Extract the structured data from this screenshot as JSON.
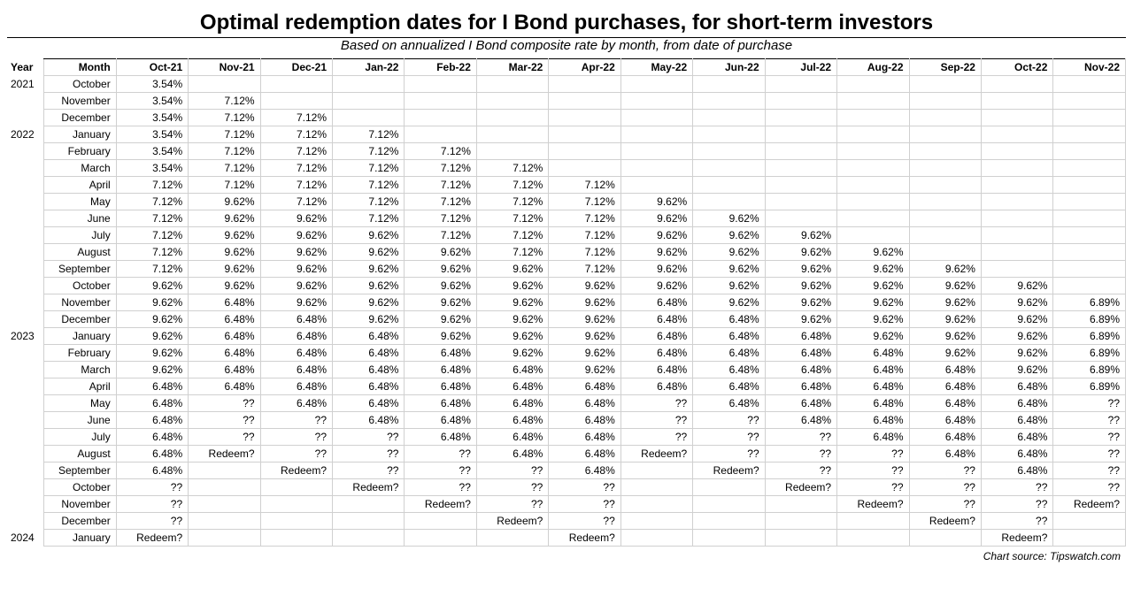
{
  "title": "Optimal redemption dates for I Bond purchases, for short-term investors",
  "subtitle": "Based on annualized I Bond composite rate by month, from date of purchase",
  "footer": "Chart source: Tipswatch.com",
  "headers": {
    "year": "Year",
    "month": "Month",
    "cols": [
      "Oct-21",
      "Nov-21",
      "Dec-21",
      "Jan-22",
      "Feb-22",
      "Mar-22",
      "Apr-22",
      "May-22",
      "Jun-22",
      "Jul-22",
      "Aug-22",
      "Sep-22",
      "Oct-22",
      "Nov-22"
    ]
  },
  "rows": [
    {
      "year": "2021",
      "month": "October",
      "cells": [
        "3.54%",
        "",
        "",
        "",
        "",
        "",
        "",
        "",
        "",
        "",
        "",
        "",
        "",
        ""
      ]
    },
    {
      "year": "",
      "month": "November",
      "cells": [
        "3.54%",
        "7.12%",
        "",
        "",
        "",
        "",
        "",
        "",
        "",
        "",
        "",
        "",
        "",
        ""
      ]
    },
    {
      "year": "",
      "month": "December",
      "cells": [
        "3.54%",
        "7.12%",
        "7.12%",
        "",
        "",
        "",
        "",
        "",
        "",
        "",
        "",
        "",
        "",
        ""
      ]
    },
    {
      "year": "2022",
      "month": "January",
      "cells": [
        "3.54%",
        "7.12%",
        "7.12%",
        "7.12%",
        "",
        "",
        "",
        "",
        "",
        "",
        "",
        "",
        "",
        ""
      ]
    },
    {
      "year": "",
      "month": "February",
      "cells": [
        "3.54%",
        "7.12%",
        "7.12%",
        "7.12%",
        "7.12%",
        "",
        "",
        "",
        "",
        "",
        "",
        "",
        "",
        ""
      ]
    },
    {
      "year": "",
      "month": "March",
      "cells": [
        "3.54%",
        "7.12%",
        "7.12%",
        "7.12%",
        "7.12%",
        "7.12%",
        "",
        "",
        "",
        "",
        "",
        "",
        "",
        ""
      ]
    },
    {
      "year": "",
      "month": "April",
      "cells": [
        "7.12%",
        "7.12%",
        "7.12%",
        "7.12%",
        "7.12%",
        "7.12%",
        "7.12%",
        "",
        "",
        "",
        "",
        "",
        "",
        ""
      ]
    },
    {
      "year": "",
      "month": "May",
      "cells": [
        "7.12%",
        "9.62%",
        "7.12%",
        "7.12%",
        "7.12%",
        "7.12%",
        "7.12%",
        "9.62%",
        "",
        "",
        "",
        "",
        "",
        ""
      ]
    },
    {
      "year": "",
      "month": "June",
      "cells": [
        "7.12%",
        "9.62%",
        "9.62%",
        "7.12%",
        "7.12%",
        "7.12%",
        "7.12%",
        "9.62%",
        "9.62%",
        "",
        "",
        "",
        "",
        ""
      ]
    },
    {
      "year": "",
      "month": "July",
      "cells": [
        "7.12%",
        "9.62%",
        "9.62%",
        "9.62%",
        "7.12%",
        "7.12%",
        "7.12%",
        "9.62%",
        "9.62%",
        "9.62%",
        "",
        "",
        "",
        ""
      ]
    },
    {
      "year": "",
      "month": "August",
      "cells": [
        "7.12%",
        "9.62%",
        "9.62%",
        "9.62%",
        "9.62%",
        "7.12%",
        "7.12%",
        "9.62%",
        "9.62%",
        "9.62%",
        "9.62%",
        "",
        "",
        ""
      ]
    },
    {
      "year": "",
      "month": "September",
      "cells": [
        "7.12%",
        "9.62%",
        "9.62%",
        "9.62%",
        "9.62%",
        "9.62%",
        "7.12%",
        "9.62%",
        "9.62%",
        "9.62%",
        "9.62%",
        "9.62%",
        "",
        ""
      ]
    },
    {
      "year": "",
      "month": "October",
      "cells": [
        "9.62%",
        "9.62%",
        "9.62%",
        "9.62%",
        "9.62%",
        "9.62%",
        "9.62%",
        "9.62%",
        "9.62%",
        "9.62%",
        "9.62%",
        "9.62%",
        "9.62%",
        ""
      ]
    },
    {
      "year": "",
      "month": "November",
      "cells": [
        "9.62%",
        "6.48%",
        "9.62%",
        "9.62%",
        "9.62%",
        "9.62%",
        "9.62%",
        "6.48%",
        "9.62%",
        "9.62%",
        "9.62%",
        "9.62%",
        "9.62%",
        "6.89%"
      ]
    },
    {
      "year": "",
      "month": "December",
      "cells": [
        "9.62%",
        "6.48%",
        "6.48%",
        "9.62%",
        "9.62%",
        "9.62%",
        "9.62%",
        "6.48%",
        "6.48%",
        "9.62%",
        "9.62%",
        "9.62%",
        "9.62%",
        "6.89%"
      ]
    },
    {
      "year": "2023",
      "month": "January",
      "cells": [
        "9.62%",
        "6.48%",
        "6.48%",
        "6.48%",
        "9.62%",
        "9.62%",
        "9.62%",
        "6.48%",
        "6.48%",
        "6.48%",
        "9.62%",
        "9.62%",
        "9.62%",
        "6.89%"
      ]
    },
    {
      "year": "",
      "month": "February",
      "cells": [
        "9.62%",
        "6.48%",
        "6.48%",
        "6.48%",
        "6.48%",
        "9.62%",
        "9.62%",
        "6.48%",
        "6.48%",
        "6.48%",
        "6.48%",
        "9.62%",
        "9.62%",
        "6.89%"
      ]
    },
    {
      "year": "",
      "month": "March",
      "cells": [
        "9.62%",
        "6.48%",
        "6.48%",
        "6.48%",
        "6.48%",
        "6.48%",
        "9.62%",
        "6.48%",
        "6.48%",
        "6.48%",
        "6.48%",
        "6.48%",
        "9.62%",
        "6.89%"
      ]
    },
    {
      "year": "",
      "month": "April",
      "cells": [
        "6.48%",
        "6.48%",
        "6.48%",
        "6.48%",
        "6.48%",
        "6.48%",
        "6.48%",
        "6.48%",
        "6.48%",
        "6.48%",
        "6.48%",
        "6.48%",
        "6.48%",
        "6.89%"
      ]
    },
    {
      "year": "",
      "month": "May",
      "cells": [
        "6.48%",
        "??",
        "6.48%",
        "6.48%",
        "6.48%",
        "6.48%",
        "6.48%",
        "??",
        "6.48%",
        "6.48%",
        "6.48%",
        "6.48%",
        "6.48%",
        "??"
      ]
    },
    {
      "year": "",
      "month": "June",
      "cells": [
        "6.48%",
        "??",
        "??",
        "6.48%",
        "6.48%",
        "6.48%",
        "6.48%",
        "??",
        "??",
        "6.48%",
        "6.48%",
        "6.48%",
        "6.48%",
        "??"
      ]
    },
    {
      "year": "",
      "month": "July",
      "cells": [
        "6.48%",
        "??",
        "??",
        "??",
        "6.48%",
        "6.48%",
        "6.48%",
        "??",
        "??",
        "??",
        "6.48%",
        "6.48%",
        "6.48%",
        "??"
      ]
    },
    {
      "year": "",
      "month": "August",
      "cells": [
        "6.48%",
        "Redeem?",
        "??",
        "??",
        "??",
        "6.48%",
        "6.48%",
        "Redeem?",
        "??",
        "??",
        "??",
        "6.48%",
        "6.48%",
        "??"
      ]
    },
    {
      "year": "",
      "month": "September",
      "cells": [
        "6.48%",
        "",
        "Redeem?",
        "??",
        "??",
        "??",
        "6.48%",
        "",
        "Redeem?",
        "??",
        "??",
        "??",
        "6.48%",
        "??"
      ]
    },
    {
      "year": "",
      "month": "October",
      "cells": [
        "??",
        "",
        "",
        "Redeem?",
        "??",
        "??",
        "??",
        "",
        "",
        "Redeem?",
        "??",
        "??",
        "??",
        "??"
      ]
    },
    {
      "year": "",
      "month": "November",
      "cells": [
        "??",
        "",
        "",
        "",
        "Redeem?",
        "??",
        "??",
        "",
        "",
        "",
        "Redeem?",
        "??",
        "??",
        "Redeem?"
      ]
    },
    {
      "year": "",
      "month": "December",
      "cells": [
        "??",
        "",
        "",
        "",
        "",
        "Redeem?",
        "??",
        "",
        "",
        "",
        "",
        "Redeem?",
        "??",
        ""
      ]
    },
    {
      "year": "2024",
      "month": "January",
      "cells": [
        "Redeem?",
        "",
        "",
        "",
        "",
        "",
        "Redeem?",
        "",
        "",
        "",
        "",
        "",
        "Redeem?",
        ""
      ]
    }
  ],
  "style": {
    "background": "#ffffff",
    "text_color": "#000000",
    "grid_color": "#d0d0d0",
    "title_fontsize": 24,
    "subtitle_fontsize": 15,
    "cell_fontsize": 12,
    "font_family": "Arial"
  }
}
